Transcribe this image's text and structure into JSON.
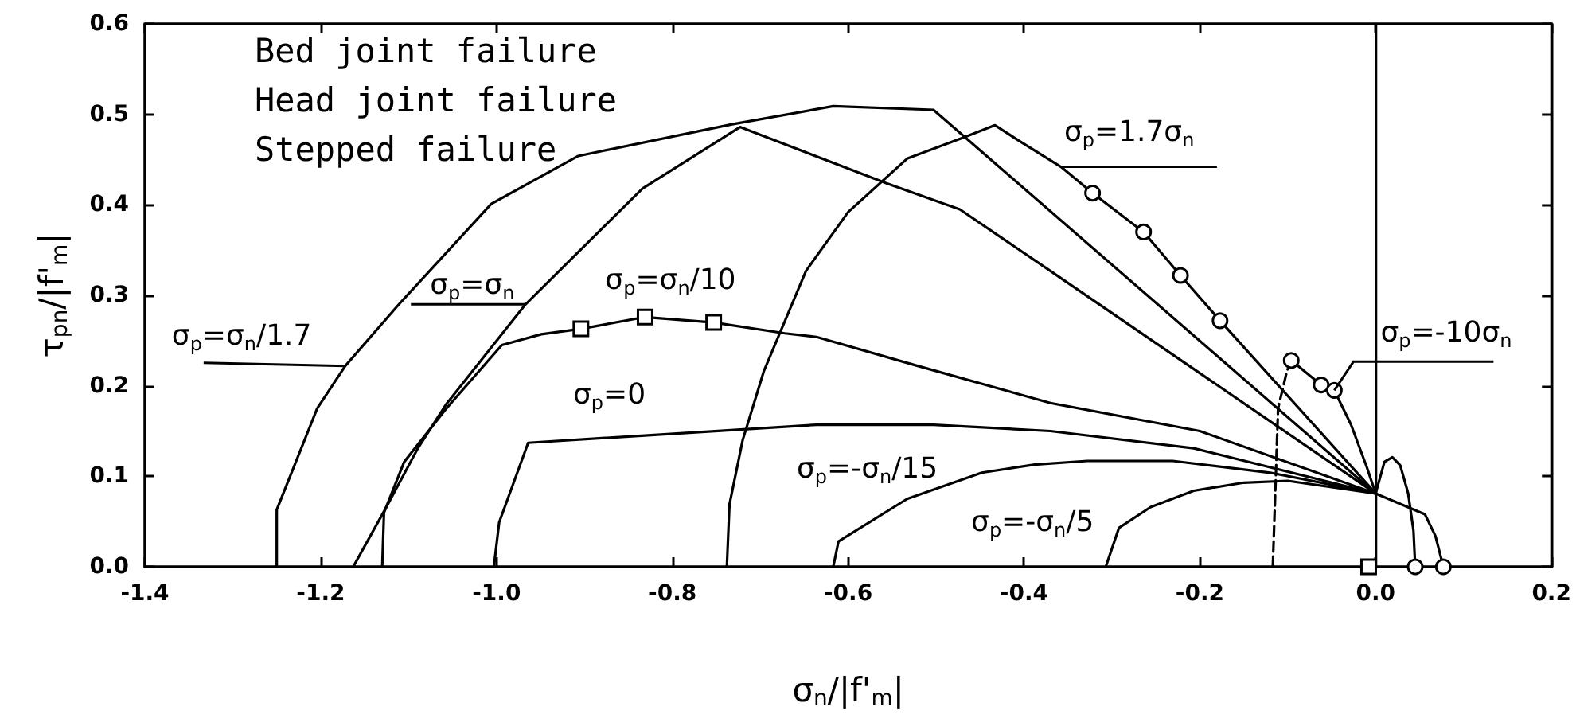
{
  "chart_data": {
    "type": "line",
    "xlabel": "σ$_{n}$/|f'$_{m}$|",
    "ylabel": "τ$_{pn}$/|f'$_{m}$|",
    "annotations": [
      "Bed joint failure",
      "Head joint failure",
      "Stepped failure"
    ],
    "xlim": [
      -1.4,
      0.2
    ],
    "xticks": [
      -1.4,
      -1.2,
      {
        "value": -1.0,
        "label": "-1.0"
      },
      -0.8,
      -0.6,
      -0.4,
      -0.2,
      {
        "value": 0,
        "label": "0.0"
      },
      0.2
    ],
    "ylim": [
      0,
      0.6
    ],
    "yticks": [
      {
        "value": 0,
        "label": "0.0"
      },
      0.1,
      0.2,
      0.3,
      0.4,
      0.5,
      0.6
    ],
    "ref_lines": [
      {
        "axis": "x",
        "value": 0
      }
    ],
    "series": [
      {
        "name": "σ$_{p}$=σ$_{n}$/1.7",
        "color": "#000000",
        "x": [
          -1.25,
          -1.25,
          -1.204,
          -1.172,
          -1.112,
          -1.006,
          -0.907,
          -0.732,
          -0.617,
          -0.503,
          0.0
        ],
        "values": [
          0,
          0.063,
          0.175,
          0.222,
          0.289,
          0.401,
          0.454,
          0.489,
          0.509,
          0.505,
          0.081
        ]
      },
      {
        "name": "σ$_{p}$=σ$_{n}$",
        "color": "#000000",
        "x": [
          -1.163,
          -1.127,
          -1.09,
          -1.057,
          -0.967,
          -0.834,
          -0.723,
          -0.557,
          -0.473,
          -0.37,
          0.0
        ],
        "values": [
          0,
          0.063,
          0.13,
          0.18,
          0.29,
          0.418,
          0.486,
          0.424,
          0.395,
          0.327,
          0.081
        ]
      },
      {
        "name": "σ$_{p}$=σ$_{n}$/10",
        "color": "#000000",
        "x": [
          -1.13,
          -1.128,
          -1.105,
          -1.057,
          -0.994,
          -0.949,
          -0.904,
          -0.831,
          -0.753,
          -0.672,
          -0.636,
          -0.521,
          -0.37,
          -0.2,
          0.0
        ],
        "values": [
          0,
          0.06,
          0.116,
          0.175,
          0.245,
          0.257,
          0.263,
          0.276,
          0.27,
          0.258,
          0.254,
          0.222,
          0.181,
          0.15,
          0.081
        ]
      },
      {
        "name": "σ$_{p}$=0",
        "color": "#000000",
        "x": [
          -1.003,
          -0.997,
          -0.964,
          -0.636,
          -0.503,
          -0.37,
          -0.207,
          0.0
        ],
        "values": [
          0,
          0.049,
          0.137,
          0.157,
          0.157,
          0.15,
          0.131,
          0.081
        ]
      },
      {
        "name": "σ$_{p}$=-σ$_{n}$/15",
        "color": "#000000",
        "x": [
          -0.617,
          -0.611,
          -0.533,
          -0.448,
          -0.388,
          -0.328,
          -0.231,
          -0.12,
          0.0
        ],
        "values": [
          0,
          0.028,
          0.075,
          0.104,
          0.113,
          0.117,
          0.117,
          0.104,
          0.081
        ]
      },
      {
        "name": "σ$_{p}$=-σ$_{n}$/5",
        "color": "#000000",
        "x": [
          -0.307,
          -0.292,
          -0.256,
          -0.207,
          -0.15,
          -0.1,
          0.0
        ],
        "values": [
          0,
          0.043,
          0.066,
          0.084,
          0.093,
          0.095,
          0.081
        ]
      },
      {
        "name": "σ$_{p}$=1.7σ$_{n}$",
        "color": "#000000",
        "x": [
          -0.738,
          -0.735,
          -0.72,
          -0.696,
          -0.648,
          -0.6,
          -0.533,
          -0.467,
          -0.433,
          -0.406,
          -0.358,
          -0.322,
          -0.264,
          -0.222,
          -0.177,
          0.0,
          0.056,
          0.068,
          0.077
        ],
        "values": [
          0,
          0.069,
          0.14,
          0.216,
          0.327,
          0.392,
          0.451,
          0.475,
          0.488,
          0.471,
          0.442,
          0.413,
          0.37,
          0.322,
          0.272,
          0.081,
          0.058,
          0.034,
          0
        ]
      },
      {
        "name": "σ$_{p}$=-10σ$_{n}$",
        "color": "#000000",
        "x": [
          -0.096,
          -0.062,
          -0.047,
          -0.028,
          -0.01,
          0.0,
          0.01,
          0.019,
          0.028,
          0.037,
          0.043,
          0.045
        ],
        "values": [
          0.228,
          0.201,
          0.195,
          0.157,
          0.11,
          0.081,
          0.116,
          0.121,
          0.112,
          0.081,
          0.04,
          0
        ]
      },
      {
        "type": "line",
        "line_style": "dashed",
        "color": "#000000",
        "x": [
          -0.117,
          -0.111,
          -0.101,
          -0.096
        ],
        "values": [
          0,
          0.175,
          0.216,
          0.228
        ]
      },
      {
        "type": "scatter",
        "marker": "square",
        "color": "#000000",
        "x": [
          -0.904,
          -0.831,
          -0.753,
          -0.008
        ],
        "values": [
          0.263,
          0.276,
          0.27,
          0
        ]
      },
      {
        "type": "scatter",
        "marker": "circle",
        "color": "#000000",
        "x": [
          -0.322,
          -0.264,
          -0.222,
          -0.177,
          -0.096,
          -0.062,
          -0.047,
          0.045,
          0.077
        ],
        "values": [
          0.413,
          0.37,
          0.322,
          0.272,
          0.228,
          0.201,
          0.195,
          0,
          0
        ]
      }
    ]
  }
}
